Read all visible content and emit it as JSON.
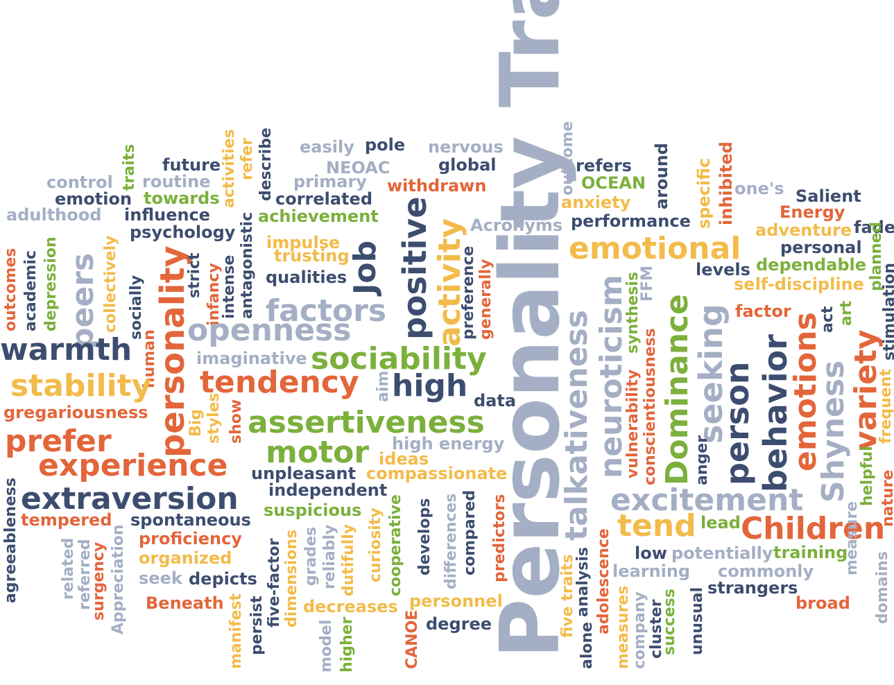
{
  "colors": {
    "grey": "#a4aec4",
    "navy": "#3d4d6f",
    "orange": "#e3653a",
    "yellow": "#f2bb4a",
    "green": "#7bb03c"
  },
  "title": "Personality Traits",
  "words": [
    "Personality Traits",
    "easily",
    "pole",
    "nervous",
    "outcome",
    "refers",
    "around",
    "specific",
    "inhibited",
    "control",
    "traits",
    "future",
    "activities",
    "refer",
    "describe",
    "NEOAC",
    "global",
    "OCEAN",
    "one's",
    "emotion",
    "routine",
    "primary",
    "withdrawn",
    "anxiety",
    "Salient",
    "adulthood",
    "towards",
    "correlated",
    "Energy",
    "influence",
    "achievement",
    "Acronyms",
    "performance",
    "adventure",
    "fade",
    "outcomes",
    "academic",
    "depression",
    "peers",
    "collectively",
    "socially",
    "psychology",
    "personality",
    "strict",
    "infancy",
    "intense",
    "antagonistic",
    "impulse",
    "trusting",
    "Job",
    "positive",
    "activity",
    "preference",
    "generally",
    "emotional",
    "personal",
    "planned",
    "qualities",
    "levels",
    "dependable",
    "FFM",
    "synthesis",
    "factors",
    "self-discipline",
    "stimulation",
    "human",
    "openness",
    "neuroticism",
    "talkativeness",
    "factor",
    "act",
    "art",
    "warmth",
    "conscientiousness",
    "vulnerability",
    "Dominance",
    "seeking",
    "person",
    "behavior",
    "emotions",
    "Shyness",
    "variety",
    "frequent",
    "imaginative",
    "sociability",
    "stability",
    "tendency",
    "high",
    "data",
    "aim",
    "gregariousness",
    "Big",
    "styles",
    "show",
    "prefer",
    "assertiveness",
    "high energy",
    "anger",
    "experience",
    "motor",
    "ideas",
    "excitement",
    "helpful",
    "nature",
    "unpleasant",
    "compassionate",
    "extraversion",
    "independent",
    "agreeableness",
    "tempered",
    "spontaneous",
    "suspicious",
    "tend",
    "lead",
    "Children",
    "related",
    "referred",
    "surgency",
    "Appreciation",
    "proficiency",
    "grades",
    "reliably",
    "dutifully",
    "curiosity",
    "cooperative",
    "develops",
    "differences",
    "compared",
    "predictors",
    "five traits",
    "analysis",
    "alone",
    "adolescence",
    "measures",
    "company",
    "cluster",
    "success",
    "unusual",
    "measure",
    "domains",
    "organized",
    "low",
    "potentially",
    "training",
    "seek",
    "depicts",
    "five-factor",
    "dimensions",
    "learning",
    "commonly",
    "Beneath",
    "manifest",
    "persist",
    "model",
    "higher",
    "decreases",
    "CANOE",
    "personnel",
    "strangers",
    "broad",
    "degree"
  ]
}
